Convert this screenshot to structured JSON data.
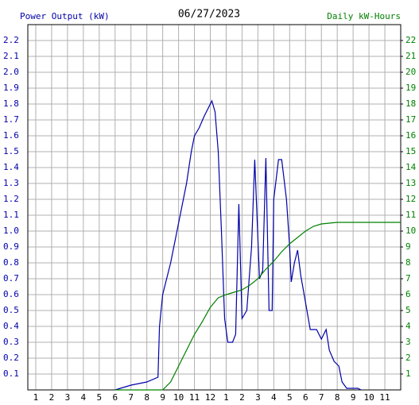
{
  "chart_data": {
    "type": "line",
    "title": "06/27/2023",
    "y_label": "Power Output (kW)",
    "y2_label": "Daily kW-Hours",
    "xlim": [
      0.5,
      24
    ],
    "xticks": [
      1,
      2,
      3,
      4,
      5,
      6,
      7,
      8,
      9,
      10,
      11,
      12,
      {
        "value": 13,
        "label": "1"
      },
      {
        "value": 14,
        "label": "2"
      },
      {
        "value": 15,
        "label": "3"
      },
      {
        "value": 16,
        "label": "4"
      },
      {
        "value": 17,
        "label": "5"
      },
      {
        "value": 18,
        "label": "6"
      },
      {
        "value": 19,
        "label": "7"
      },
      {
        "value": 20,
        "label": "8"
      },
      {
        "value": 21,
        "label": "9"
      },
      {
        "value": 22,
        "label": "10"
      },
      {
        "value": 23,
        "label": "11"
      }
    ],
    "ylim": [
      0,
      2.3
    ],
    "yticks": [
      0.1,
      0.2,
      0.3,
      0.4,
      0.5,
      0.6,
      0.7,
      0.8,
      0.9,
      {
        "value": 1,
        "label": "1.0"
      },
      1.1,
      1.2,
      1.3,
      1.4,
      1.5,
      1.6,
      1.7,
      1.8,
      1.9,
      {
        "value": 2,
        "label": "2.0"
      },
      2.1,
      2.2
    ],
    "y2lim": [
      0,
      23
    ],
    "y2ticks": [
      1,
      2,
      3,
      4,
      5,
      6,
      7,
      8,
      9,
      10,
      11,
      12,
      13,
      14,
      15,
      16,
      17,
      18,
      19,
      20,
      21,
      22
    ],
    "grid": true,
    "series": [
      {
        "name": "Power Output (kW)",
        "color": "#0000aa",
        "x": [
          6,
          7,
          8,
          8.7,
          8.8,
          9,
          9.5,
          9.7,
          9.9,
          10.2,
          10.5,
          10.8,
          11,
          11.3,
          11.6,
          11.9,
          12.1,
          12.3,
          12.5,
          12.7,
          12.9,
          13.1,
          13.4,
          13.6,
          13.8,
          14,
          14.3,
          14.6,
          14.8,
          15.1,
          15.3,
          15.5,
          15.7,
          15.9,
          16,
          16.3,
          16.5,
          16.8,
          17,
          17.1,
          17.3,
          17.5,
          17.7,
          18,
          18.3,
          18.7,
          19,
          19.3,
          19.5,
          19.8,
          20.1,
          20.3,
          20.6,
          21.3,
          21.5
        ],
        "values": [
          0,
          0.03,
          0.05,
          0.08,
          0.4,
          0.6,
          0.8,
          0.9,
          1.0,
          1.15,
          1.3,
          1.5,
          1.6,
          1.65,
          1.72,
          1.78,
          1.82,
          1.75,
          1.5,
          1.0,
          0.45,
          0.3,
          0.3,
          0.35,
          1.17,
          0.45,
          0.5,
          0.9,
          1.45,
          0.7,
          0.75,
          1.46,
          0.5,
          0.5,
          1.2,
          1.45,
          1.45,
          1.2,
          0.9,
          0.68,
          0.8,
          0.88,
          0.72,
          0.55,
          0.38,
          0.38,
          0.32,
          0.38,
          0.25,
          0.18,
          0.15,
          0.05,
          0.01,
          0.01,
          0
        ]
      },
      {
        "name": "Daily kW-Hours",
        "color": "#008000",
        "axis": "y2",
        "x": [
          6,
          9,
          9.5,
          10,
          10.5,
          11,
          11.5,
          12,
          12.5,
          13,
          13.5,
          14,
          14.5,
          15,
          15.5,
          16,
          16.5,
          17,
          17.5,
          18,
          18.5,
          19,
          19.5,
          20,
          24
        ],
        "values": [
          0,
          0,
          0.5,
          1.5,
          2.5,
          3.5,
          4.3,
          5.2,
          5.8,
          6.0,
          6.15,
          6.3,
          6.6,
          7.0,
          7.6,
          8.1,
          8.7,
          9.2,
          9.6,
          10.0,
          10.3,
          10.45,
          10.5,
          10.55,
          10.55
        ]
      }
    ]
  }
}
